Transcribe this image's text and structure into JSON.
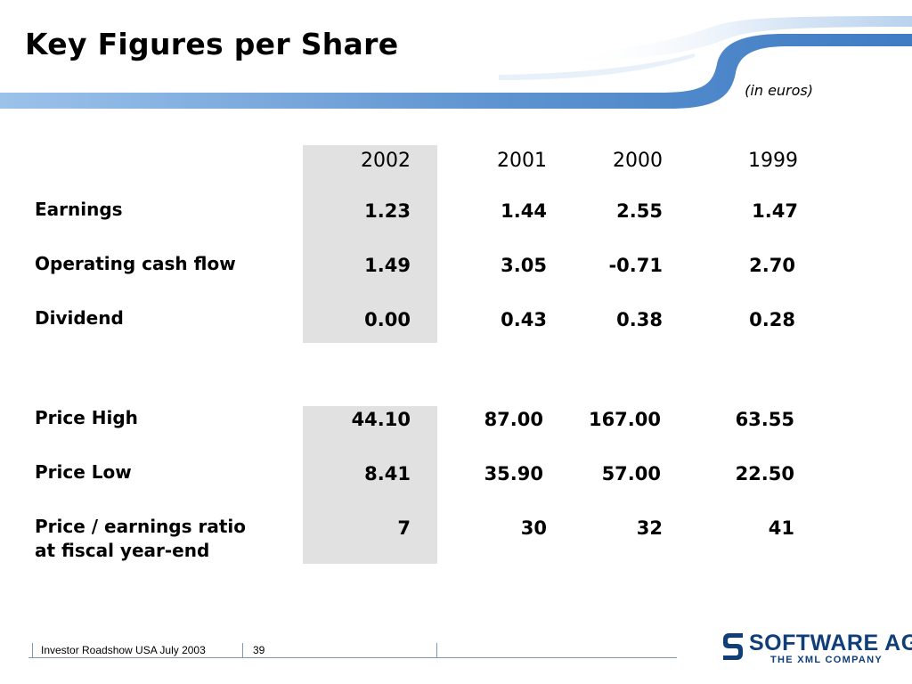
{
  "slide": {
    "title": "Key Figures per Share",
    "units_note": "(in euros)"
  },
  "table": {
    "years": [
      "2002",
      "2001",
      "2000",
      "1999"
    ],
    "rows": [
      {
        "label": "Earnings",
        "values": [
          "1.23",
          "1.44",
          "2.55",
          "1.47"
        ]
      },
      {
        "label": "Operating cash flow",
        "values": [
          "1.49",
          "3.05",
          "-0.71",
          "2.70"
        ]
      },
      {
        "label": "Dividend",
        "values": [
          "0.00",
          "0.43",
          "0.38",
          "0.28"
        ]
      },
      {
        "label": "Price High",
        "values": [
          "44.10",
          "87.00",
          "167.00",
          "63.55"
        ]
      },
      {
        "label": "Price Low",
        "values": [
          "8.41",
          "35.90",
          "57.00",
          "22.50"
        ]
      },
      {
        "label_line1": "Price / earnings ratio",
        "label_line2": "at fiscal year-end",
        "values": [
          "7",
          "30",
          "32",
          "41"
        ]
      }
    ]
  },
  "footer": {
    "event": "Investor Roadshow USA July 2003",
    "page_number": "39"
  },
  "logo": {
    "wordmark": "SOFTWARE AG",
    "tagline": "THE XML COMPANY",
    "color": "#0f3e78"
  },
  "colors": {
    "highlight_column": "#e1e1e1",
    "swoosh_blue": "#6b9fd8",
    "swoosh_light": "#cfe0f3"
  }
}
